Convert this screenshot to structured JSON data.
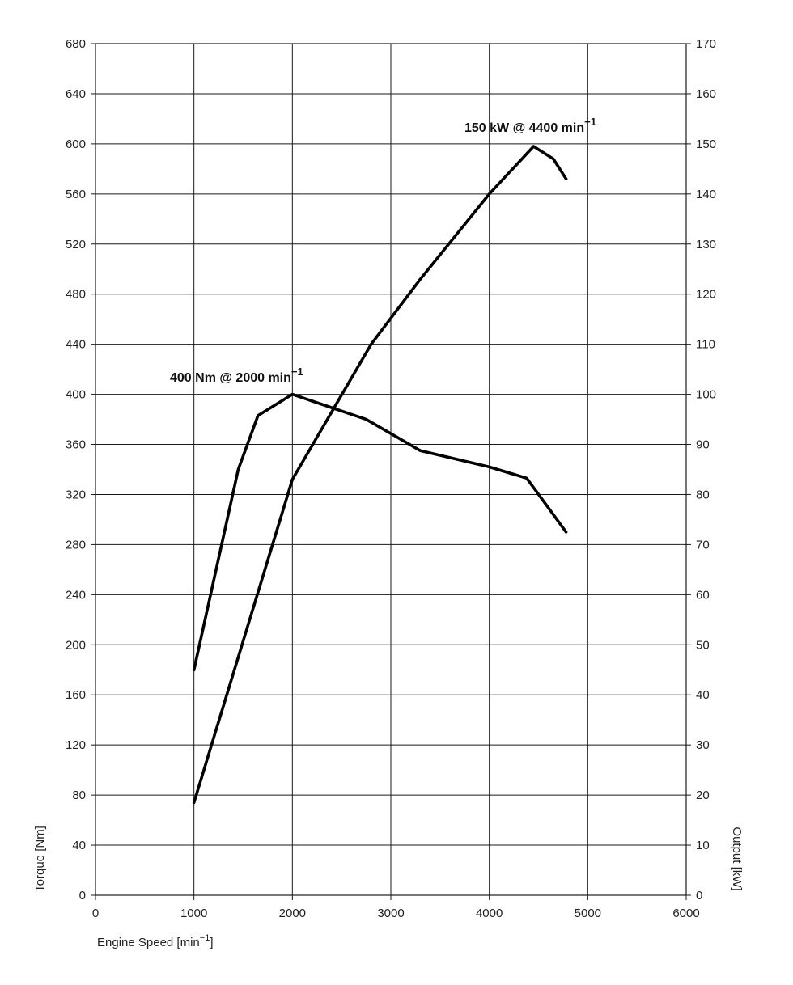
{
  "chart_data": {
    "type": "line",
    "x_axis": {
      "label": "Engine Speed [min",
      "label_sup": "−1",
      "label_suffix": "]",
      "range": [
        0,
        6000
      ],
      "ticks": [
        0,
        1000,
        2000,
        3000,
        4000,
        5000,
        6000
      ]
    },
    "y_left": {
      "label": "Torque [Nm]",
      "range": [
        0,
        680
      ],
      "ticks": [
        0,
        40,
        80,
        120,
        160,
        200,
        240,
        280,
        320,
        360,
        400,
        440,
        480,
        520,
        560,
        600,
        640,
        680
      ]
    },
    "y_right": {
      "label": "Output [kW]",
      "range": [
        0,
        170
      ],
      "ticks": [
        0,
        10,
        20,
        30,
        40,
        50,
        60,
        70,
        80,
        90,
        100,
        110,
        120,
        130,
        140,
        150,
        160,
        170
      ]
    },
    "grid": true,
    "series": [
      {
        "axis": "left",
        "x": [
          1000,
          1450,
          1650,
          2000,
          2750,
          3300,
          4000,
          4380,
          4780
        ],
        "y": [
          180,
          340,
          383,
          400,
          380,
          355,
          342,
          333,
          290
        ]
      },
      {
        "axis": "right",
        "x": [
          1000,
          2000,
          2800,
          3300,
          4000,
          4450,
          4650,
          4780
        ],
        "y": [
          18.5,
          83,
          110,
          123,
          140,
          149.5,
          147,
          143
        ]
      }
    ],
    "annotations": [
      {
        "text": "400 Nm @ 2000 min",
        "sup": "−1"
      },
      {
        "text": "150 kW @ 4400  min",
        "sup": "−1"
      }
    ]
  }
}
